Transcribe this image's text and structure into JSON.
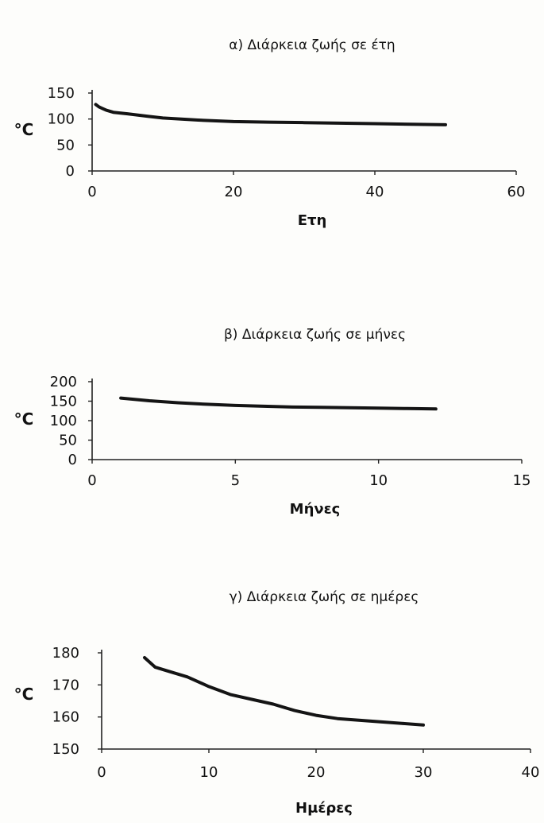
{
  "chart_data": [
    {
      "type": "line",
      "title": "α) Διάρκεια ζωής σε έτη",
      "xlabel": "Ετη",
      "ylabel": "°C",
      "xlim": [
        0,
        60
      ],
      "ylim": [
        0,
        150
      ],
      "xticks": [
        0,
        20,
        40,
        60
      ],
      "yticks": [
        0,
        50,
        100,
        150
      ],
      "grid": false,
      "series": [
        {
          "x": [
            0.5,
            1,
            2,
            3,
            5,
            8,
            10,
            15,
            20,
            25,
            30,
            35,
            40,
            45,
            50
          ],
          "y": [
            128,
            123,
            117,
            113,
            110,
            105,
            102,
            98,
            95,
            94,
            93,
            92,
            91,
            90,
            89
          ]
        }
      ]
    },
    {
      "type": "line",
      "title": "β) Διάρκεια ζωής σε μήνες",
      "xlabel": "Μήνες",
      "ylabel": "°C",
      "xlim": [
        0,
        15
      ],
      "ylim": [
        0,
        200
      ],
      "xticks": [
        0,
        5,
        10,
        15
      ],
      "yticks": [
        0,
        50,
        100,
        150,
        200
      ],
      "grid": false,
      "series": [
        {
          "x": [
            1,
            2,
            3,
            4,
            5,
            6,
            7,
            8,
            9,
            10,
            11,
            12
          ],
          "y": [
            158,
            151,
            146,
            142,
            139,
            137,
            135,
            134,
            133,
            132,
            131,
            130
          ]
        }
      ]
    },
    {
      "type": "line",
      "title": "γ) Διάρκεια ζωής σε ημέρες",
      "xlabel": "Ημέρες",
      "ylabel": "°C",
      "xlim": [
        0,
        40
      ],
      "ylim": [
        150,
        180
      ],
      "xticks": [
        0,
        10,
        20,
        30,
        40
      ],
      "yticks": [
        150,
        160,
        170,
        180
      ],
      "grid": false,
      "series": [
        {
          "x": [
            4,
            5,
            6,
            8,
            10,
            12,
            14,
            16,
            18,
            20,
            22,
            24,
            26,
            28,
            30
          ],
          "y": [
            178.5,
            175.5,
            174.5,
            172.5,
            169.5,
            167,
            165.5,
            164,
            162,
            160.5,
            159.5,
            159,
            158.5,
            158,
            157.5
          ]
        }
      ]
    }
  ],
  "colors": {
    "line": "#141414",
    "axis": "#222222",
    "text": "#111111",
    "background": "#fdfdfb"
  }
}
